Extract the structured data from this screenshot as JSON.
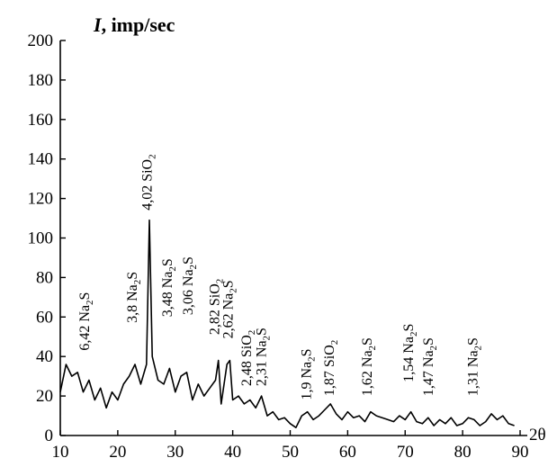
{
  "chart_data": {
    "type": "line",
    "title": "",
    "ylabel": "I, imp/sec",
    "ylabel_parts": {
      "symbol": "I",
      "unit": ", imp/sec"
    },
    "xlabel": "2θ",
    "xlim": [
      10,
      90
    ],
    "ylim": [
      0,
      200
    ],
    "xticks": [
      10,
      20,
      30,
      40,
      50,
      60,
      70,
      80,
      90
    ],
    "yticks": [
      0,
      20,
      40,
      60,
      80,
      100,
      120,
      140,
      160,
      180,
      200
    ],
    "grid": false,
    "series": [
      {
        "x": [
          10,
          11,
          12,
          13,
          14,
          15,
          16,
          17,
          18,
          19,
          20,
          21,
          22,
          23,
          24,
          25,
          25.5,
          26,
          27,
          28,
          29,
          30,
          31,
          32,
          33,
          34,
          35,
          36,
          37,
          37.5,
          38,
          39,
          39.5,
          40,
          41,
          42,
          43,
          44,
          45,
          46,
          47,
          48,
          49,
          50,
          51,
          52,
          53,
          54,
          55,
          56,
          57,
          58,
          59,
          60,
          61,
          62,
          63,
          64,
          65,
          66,
          67,
          68,
          69,
          70,
          71,
          72,
          73,
          74,
          75,
          76,
          77,
          78,
          79,
          80,
          81,
          82,
          83,
          84,
          85,
          86,
          87,
          88,
          89
        ],
        "y": [
          22,
          36,
          30,
          32,
          22,
          28,
          18,
          24,
          14,
          22,
          18,
          26,
          30,
          36,
          26,
          36,
          109,
          40,
          28,
          26,
          34,
          22,
          30,
          32,
          18,
          26,
          20,
          24,
          28,
          38,
          16,
          36,
          38,
          18,
          20,
          16,
          18,
          14,
          20,
          10,
          12,
          8,
          9,
          6,
          4,
          10,
          12,
          8,
          10,
          13,
          16,
          11,
          8,
          12,
          9,
          10,
          7,
          12,
          10,
          9,
          8,
          7,
          10,
          8,
          12,
          7,
          6,
          9,
          5,
          8,
          6,
          9,
          5,
          6,
          9,
          8,
          5,
          7,
          11,
          8,
          10,
          6,
          5
        ]
      }
    ],
    "annotations": [
      {
        "d": "6,42",
        "phase": "Na",
        "sub": "2",
        "tail": "S",
        "x": 15.0,
        "y": 43
      },
      {
        "d": "3,8",
        "phase": "Na",
        "sub": "2",
        "tail": "S",
        "x": 23.3,
        "y": 57
      },
      {
        "d": "4,02",
        "phase": "SiO",
        "sub": "2",
        "tail": "",
        "x": 25.9,
        "y": 114
      },
      {
        "d": "3,48",
        "phase": "Na",
        "sub": "2",
        "tail": "S",
        "x": 29.4,
        "y": 60
      },
      {
        "d": "3,06",
        "phase": "Na",
        "sub": "2",
        "tail": "S",
        "x": 33.0,
        "y": 61
      },
      {
        "d": "2,82",
        "phase": "SiO",
        "sub": "2",
        "tail": "",
        "x": 37.6,
        "y": 51
      },
      {
        "d": "2,62",
        "phase": "Na",
        "sub": "2",
        "tail": "S",
        "x": 40.0,
        "y": 49
      },
      {
        "d": "2,48",
        "phase": "SiO",
        "sub": "2",
        "tail": "",
        "x": 43.2,
        "y": 25
      },
      {
        "d": "2,31",
        "phase": "Na",
        "sub": "2",
        "tail": "S",
        "x": 45.8,
        "y": 25
      },
      {
        "d": "1,9",
        "phase": "Na",
        "sub": "2",
        "tail": "S",
        "x": 53.6,
        "y": 18
      },
      {
        "d": "1,87",
        "phase": "SiO",
        "sub": "2",
        "tail": "",
        "x": 57.6,
        "y": 20
      },
      {
        "d": "1,62",
        "phase": "Na",
        "sub": "2",
        "tail": "S",
        "x": 64.2,
        "y": 20
      },
      {
        "d": "1,54",
        "phase": "Na",
        "sub": "2",
        "tail": "S",
        "x": 71.4,
        "y": 27
      },
      {
        "d": "1,47",
        "phase": "Na",
        "sub": "2",
        "tail": "S",
        "x": 74.8,
        "y": 20
      },
      {
        "d": "1,31",
        "phase": "Na",
        "sub": "2",
        "tail": "S",
        "x": 82.6,
        "y": 20
      }
    ],
    "colors": {
      "line": "#000000",
      "axis": "#000000",
      "text": "#000000"
    }
  }
}
